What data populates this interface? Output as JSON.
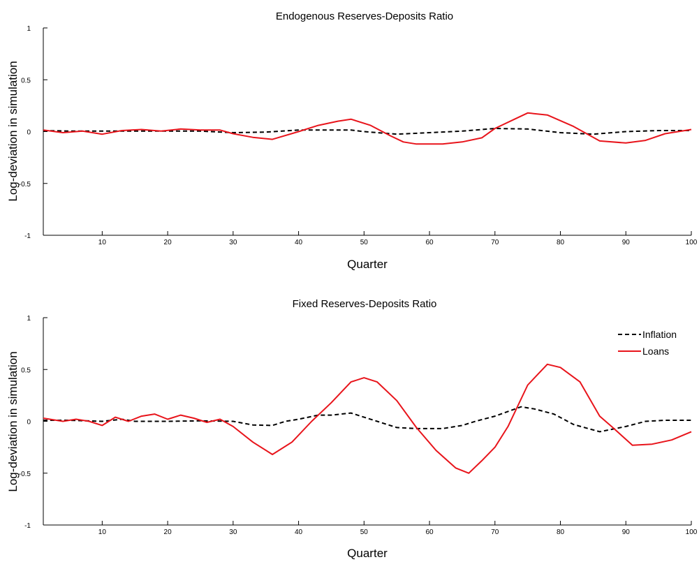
{
  "chart_data": [
    {
      "type": "line",
      "title": "Endogenous Reserves-Deposits Ratio",
      "xlabel": "Quarter",
      "ylabel": "Log-deviation in simulation",
      "xlim": [
        1,
        100
      ],
      "ylim": [
        -1,
        1
      ],
      "xticks": [
        10,
        20,
        30,
        40,
        50,
        60,
        70,
        80,
        90,
        100
      ],
      "yticks": [
        -1,
        -0.5,
        0,
        0.5,
        1
      ],
      "xtick_labels": [
        "10",
        "20",
        "30",
        "40",
        "50",
        "60",
        "70",
        "80",
        "90",
        "100"
      ],
      "ytick_labels": [
        "-1",
        "-0.5",
        "0",
        "0.5",
        "1"
      ],
      "grid": false,
      "legend": null,
      "series": [
        {
          "name": "Inflation",
          "color": "#000000",
          "dash": "dashed",
          "x": [
            1,
            5,
            10,
            15,
            20,
            25,
            30,
            35,
            40,
            45,
            48,
            50,
            55,
            60,
            65,
            70,
            75,
            80,
            85,
            90,
            95,
            100
          ],
          "y": [
            0.01,
            0.005,
            0.005,
            0.005,
            0.005,
            0.005,
            -0.01,
            -0.005,
            0.015,
            0.015,
            0.015,
            0.0,
            -0.025,
            -0.01,
            0.005,
            0.03,
            0.025,
            -0.01,
            -0.025,
            0.0,
            0.01,
            0.01
          ]
        },
        {
          "name": "Loans",
          "color": "#e8141b",
          "dash": "solid",
          "x": [
            1,
            4,
            7,
            10,
            13,
            16,
            19,
            22,
            25,
            28,
            30,
            33,
            36,
            40,
            43,
            46,
            48,
            51,
            54,
            56,
            58,
            62,
            65,
            68,
            70,
            73,
            75,
            78,
            82,
            86,
            90,
            93,
            96,
            100
          ],
          "y": [
            0.015,
            -0.01,
            0.005,
            -0.025,
            0.01,
            0.02,
            0.005,
            0.025,
            0.015,
            0.015,
            -0.02,
            -0.055,
            -0.075,
            0.0,
            0.06,
            0.1,
            0.12,
            0.06,
            -0.04,
            -0.1,
            -0.12,
            -0.12,
            -0.1,
            -0.06,
            0.03,
            0.12,
            0.18,
            0.16,
            0.05,
            -0.09,
            -0.11,
            -0.085,
            -0.02,
            0.02
          ]
        }
      ]
    },
    {
      "type": "line",
      "title": "Fixed Reserves-Deposits Ratio",
      "xlabel": "Quarter",
      "ylabel": "Log-deviation in simulation",
      "xlim": [
        1,
        100
      ],
      "ylim": [
        -1,
        1
      ],
      "xticks": [
        10,
        20,
        30,
        40,
        50,
        60,
        70,
        80,
        90,
        100
      ],
      "yticks": [
        -1,
        -0.5,
        0,
        0.5,
        1
      ],
      "xtick_labels": [
        "10",
        "20",
        "30",
        "40",
        "50",
        "60",
        "70",
        "80",
        "90",
        "100"
      ],
      "ytick_labels": [
        "-1",
        "-0.5",
        "0",
        "0.5",
        "1"
      ],
      "grid": false,
      "legend": "top-right",
      "series": [
        {
          "name": "Inflation",
          "color": "#000000",
          "dash": "dashed",
          "x": [
            1,
            5,
            10,
            13,
            15,
            20,
            25,
            30,
            33,
            36,
            38,
            40,
            43,
            45,
            48,
            50,
            52,
            55,
            58,
            62,
            65,
            67,
            70,
            74,
            76,
            79,
            82,
            86,
            90,
            93,
            96,
            100
          ],
          "y": [
            0.01,
            0.01,
            0.0,
            0.02,
            0.0,
            0.0,
            0.005,
            0.0,
            -0.035,
            -0.04,
            0.0,
            0.02,
            0.06,
            0.06,
            0.08,
            0.04,
            0.0,
            -0.06,
            -0.07,
            -0.07,
            -0.04,
            0.0,
            0.05,
            0.14,
            0.12,
            0.07,
            -0.03,
            -0.1,
            -0.05,
            0.0,
            0.01,
            0.01
          ]
        },
        {
          "name": "Loans",
          "color": "#e8141b",
          "dash": "solid",
          "x": [
            1,
            4,
            6,
            8,
            10,
            12,
            14,
            16,
            18,
            20,
            22,
            24,
            26,
            28,
            30,
            33,
            36,
            39,
            42,
            45,
            48,
            50,
            52,
            55,
            58,
            61,
            64,
            66,
            68,
            70,
            72,
            75,
            78,
            80,
            83,
            86,
            88,
            91,
            94,
            97,
            100
          ],
          "y": [
            0.03,
            0.0,
            0.02,
            0.0,
            -0.04,
            0.04,
            0.0,
            0.05,
            0.07,
            0.02,
            0.06,
            0.03,
            -0.01,
            0.02,
            -0.05,
            -0.2,
            -0.32,
            -0.2,
            0.0,
            0.18,
            0.38,
            0.42,
            0.38,
            0.2,
            -0.06,
            -0.28,
            -0.45,
            -0.5,
            -0.38,
            -0.25,
            -0.05,
            0.35,
            0.55,
            0.52,
            0.38,
            0.05,
            -0.06,
            -0.23,
            -0.22,
            -0.18,
            -0.1
          ]
        }
      ]
    }
  ]
}
